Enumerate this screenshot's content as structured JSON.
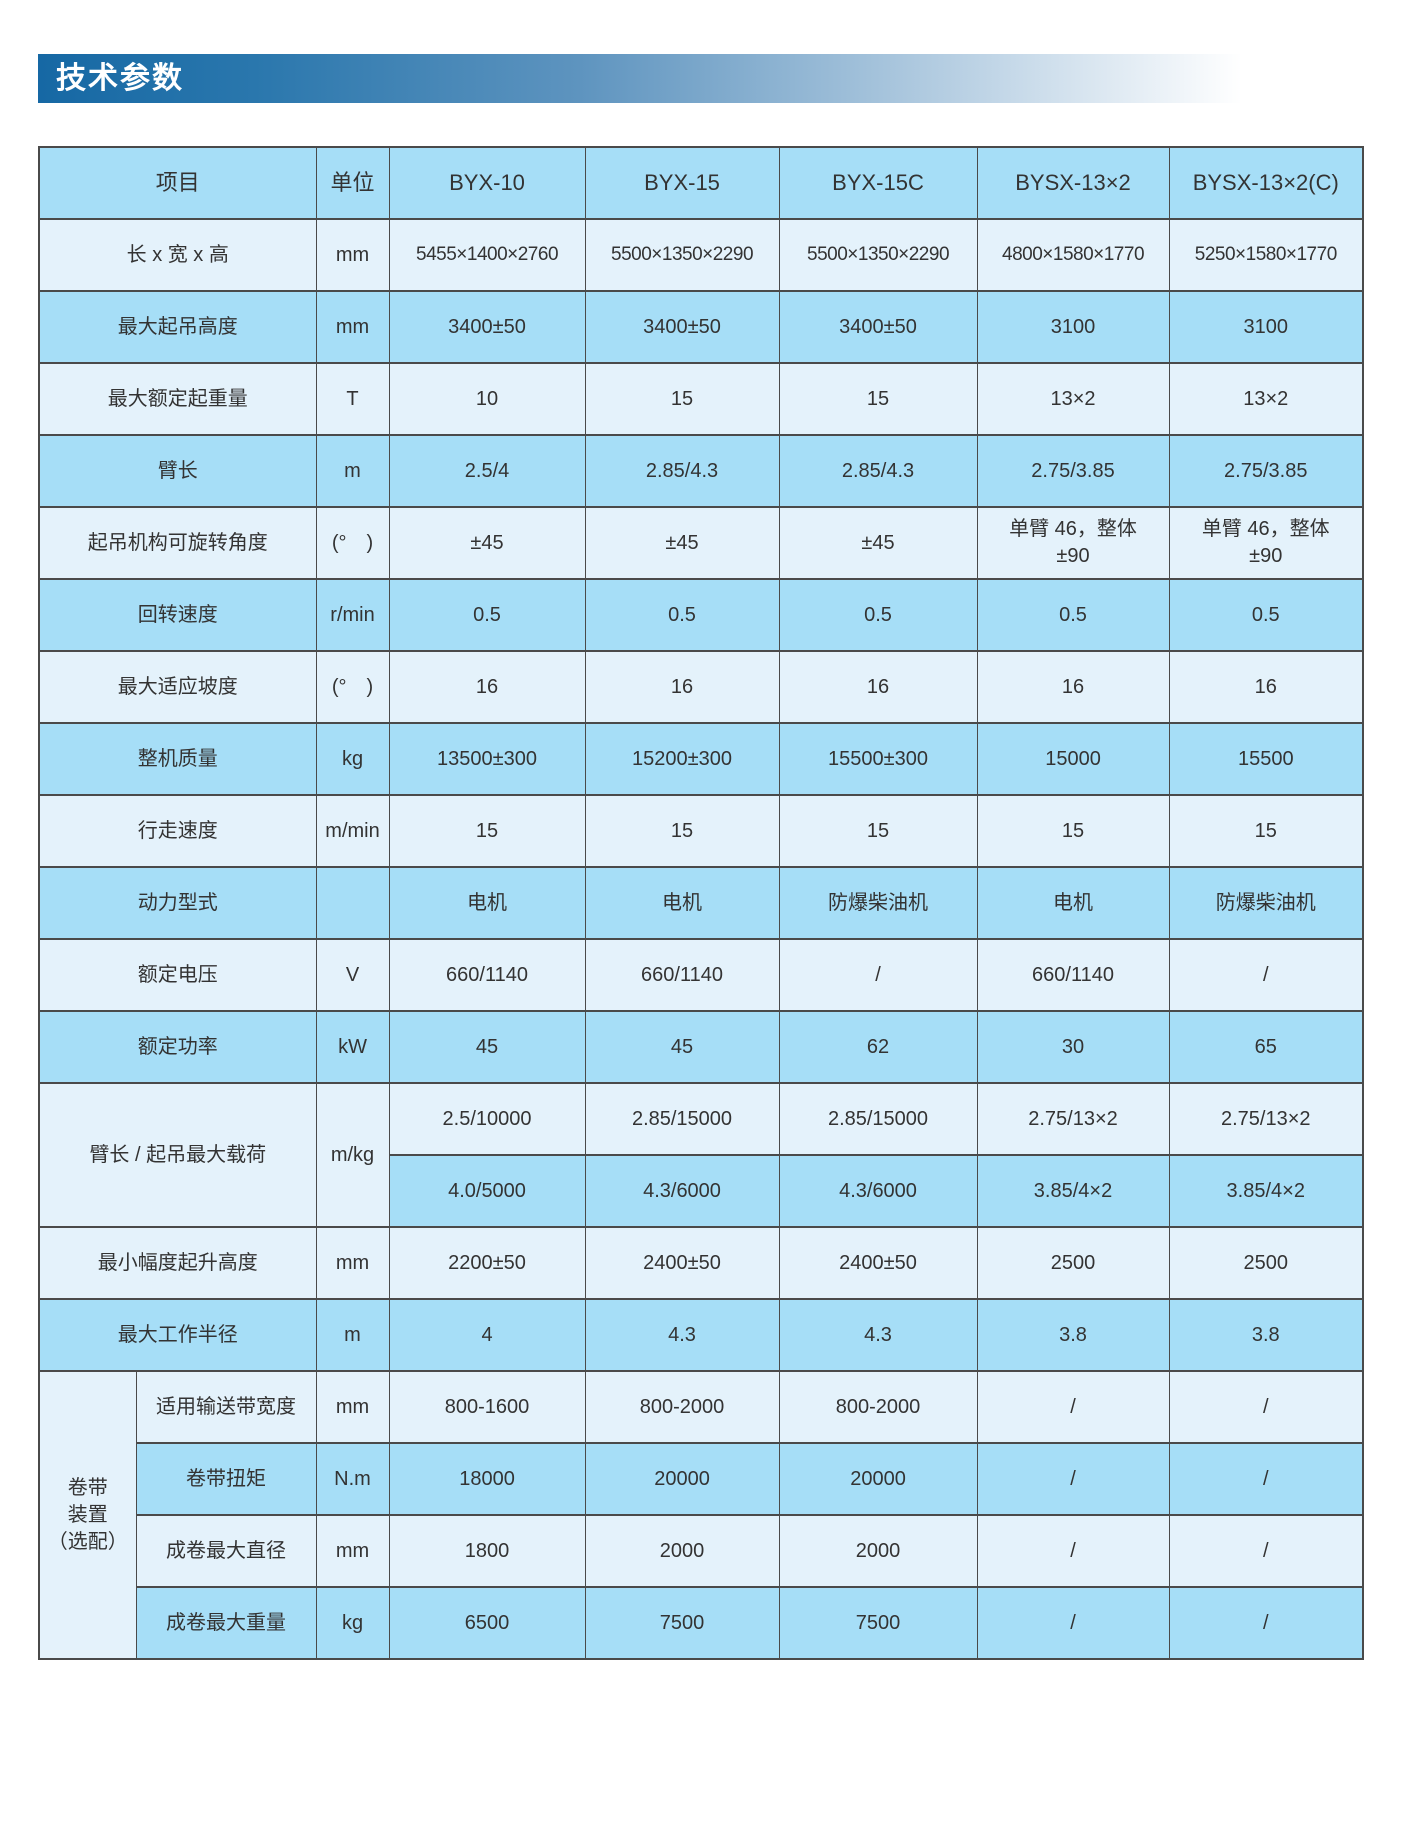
{
  "banner": {
    "title": "技术参数"
  },
  "colors": {
    "row_medium": "#a6def7",
    "row_light": "#e4f2fb",
    "grid_line": "#4a4a4a",
    "banner_gradient_start": "#1668a4",
    "banner_gradient_end": "#ffffff",
    "text": "#333333"
  },
  "table": {
    "header": [
      "项目",
      "单位",
      "BYX-10",
      "BYX-15",
      "BYX-15C",
      "BYSX-13×2",
      "BYSX-13×2(C)"
    ],
    "rows": [
      {
        "type": "simple",
        "tone": "light",
        "dim": true,
        "label": "长 x 宽 x 高",
        "unit": "mm",
        "values": [
          "5455×1400×2760",
          "5500×1350×2290",
          "5500×1350×2290",
          "4800×1580×1770",
          "5250×1580×1770"
        ]
      },
      {
        "type": "simple",
        "tone": "medium",
        "label": "最大起吊高度",
        "unit": "mm",
        "values": [
          "3400±50",
          "3400±50",
          "3400±50",
          "3100",
          "3100"
        ]
      },
      {
        "type": "simple",
        "tone": "light",
        "label": "最大额定起重量",
        "unit": "T",
        "values": [
          "10",
          "15",
          "15",
          "13×2",
          "13×2"
        ]
      },
      {
        "type": "simple",
        "tone": "medium",
        "label": "臂长",
        "unit": "m",
        "values": [
          "2.5/4",
          "2.85/4.3",
          "2.85/4.3",
          "2.75/3.85",
          "2.75/3.85"
        ]
      },
      {
        "type": "simple",
        "tone": "light",
        "label": "起吊机构可旋转角度",
        "unit": "(°　)",
        "values": [
          "±45",
          "±45",
          "±45",
          "单臂 46，整体\n±90",
          "单臂 46，整体\n±90"
        ]
      },
      {
        "type": "simple",
        "tone": "medium",
        "label": "回转速度",
        "unit": "r/min",
        "values": [
          "0.5",
          "0.5",
          "0.5",
          "0.5",
          "0.5"
        ]
      },
      {
        "type": "simple",
        "tone": "light",
        "label": "最大适应坡度",
        "unit": "(°　)",
        "values": [
          "16",
          "16",
          "16",
          "16",
          "16"
        ]
      },
      {
        "type": "simple",
        "tone": "medium",
        "label": "整机质量",
        "unit": "kg",
        "values": [
          "13500±300",
          "15200±300",
          "15500±300",
          "15000",
          "15500"
        ]
      },
      {
        "type": "simple",
        "tone": "light",
        "label": "行走速度",
        "unit": "m/min",
        "values": [
          "15",
          "15",
          "15",
          "15",
          "15"
        ]
      },
      {
        "type": "simple",
        "tone": "medium",
        "label": "动力型式",
        "unit": "",
        "values": [
          "电机",
          "电机",
          "防爆柴油机",
          "电机",
          "防爆柴油机"
        ]
      },
      {
        "type": "simple",
        "tone": "light",
        "label": "额定电压",
        "unit": "V",
        "values": [
          "660/1140",
          "660/1140",
          "/",
          "660/1140",
          "/"
        ]
      },
      {
        "type": "simple",
        "tone": "medium",
        "label": "额定功率",
        "unit": "kW",
        "values": [
          "45",
          "45",
          "62",
          "30",
          "65"
        ]
      },
      {
        "type": "dual",
        "label": "臂长 / 起吊最大载荷",
        "unit": "m/kg",
        "sub": [
          {
            "tone": "light",
            "values": [
              "2.5/10000",
              "2.85/15000",
              "2.85/15000",
              "2.75/13×2",
              "2.75/13×2"
            ]
          },
          {
            "tone": "medium",
            "values": [
              "4.0/5000",
              "4.3/6000",
              "4.3/6000",
              "3.85/4×2",
              "3.85/4×2"
            ]
          }
        ]
      },
      {
        "type": "simple",
        "tone": "light",
        "label": "最小幅度起升高度",
        "unit": "mm",
        "values": [
          "2200±50",
          "2400±50",
          "2400±50",
          "2500",
          "2500"
        ]
      },
      {
        "type": "simple",
        "tone": "medium",
        "label": "最大工作半径",
        "unit": "m",
        "values": [
          "4",
          "4.3",
          "4.3",
          "3.8",
          "3.8"
        ]
      },
      {
        "type": "group",
        "label": "卷带\n装置\n（选配）",
        "items": [
          {
            "tone": "light",
            "label": "适用输送带宽度",
            "unit": "mm",
            "values": [
              "800-1600",
              "800-2000",
              "800-2000",
              "/",
              "/"
            ]
          },
          {
            "tone": "medium",
            "label": "卷带扭矩",
            "unit": "N.m",
            "values": [
              "18000",
              "20000",
              "20000",
              "/",
              "/"
            ]
          },
          {
            "tone": "light",
            "label": "成卷最大直径",
            "unit": "mm",
            "values": [
              "1800",
              "2000",
              "2000",
              "/",
              "/"
            ]
          },
          {
            "tone": "medium",
            "label": "成卷最大重量",
            "unit": "kg",
            "values": [
              "6500",
              "7500",
              "7500",
              "/",
              "/"
            ]
          }
        ]
      }
    ]
  }
}
